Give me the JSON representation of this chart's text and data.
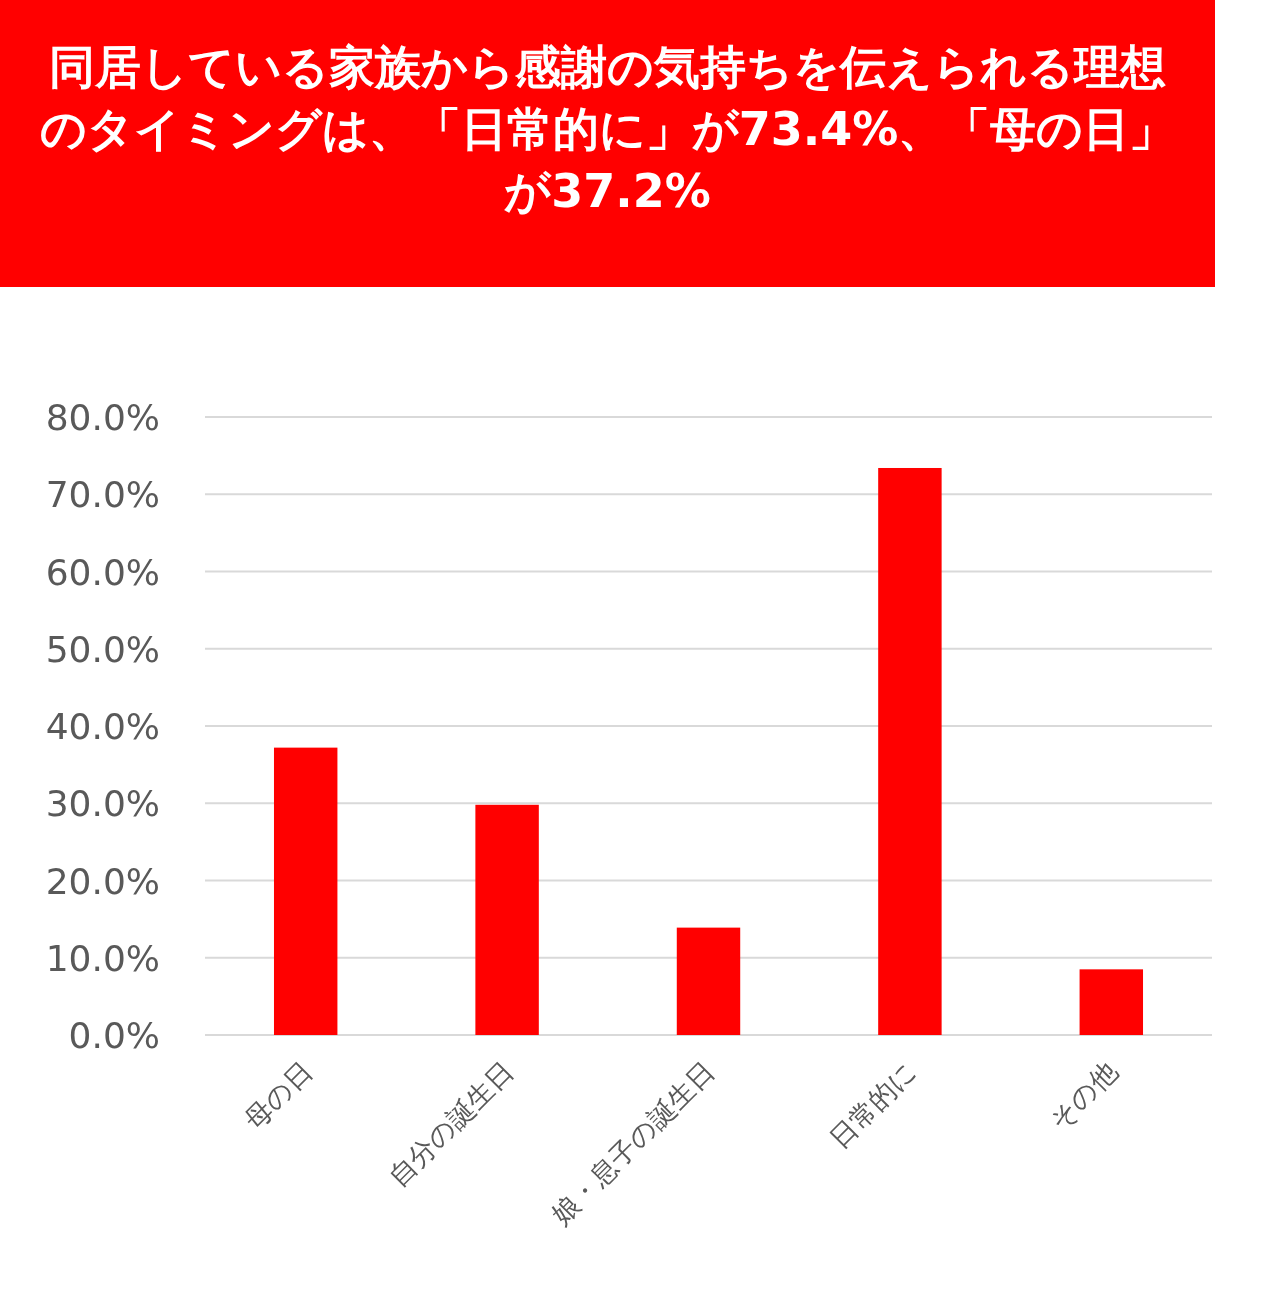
{
  "chart_data": {
    "type": "bar",
    "title": "同居している家族から感謝の気持ちを伝えられる理想のタイミングは、「日常的に」が73.4%、「母の日」が37.2%",
    "categories": [
      "母の日",
      "自分の誕生日",
      "娘・息子の誕生日",
      "日常的に",
      "その他"
    ],
    "values": [
      37.2,
      29.8,
      13.9,
      73.4,
      8.5
    ],
    "color": "#ff0000",
    "ylim": [
      0,
      80
    ],
    "yticks": [
      {
        "value": 0,
        "label": "0.0%"
      },
      {
        "value": 10,
        "label": "10.0%"
      },
      {
        "value": 20,
        "label": "20.0%"
      },
      {
        "value": 30,
        "label": "30.0%"
      },
      {
        "value": 40,
        "label": "40.0%"
      },
      {
        "value": 50,
        "label": "50.0%"
      },
      {
        "value": 60,
        "label": "60.0%"
      },
      {
        "value": 70,
        "label": "70.0%"
      },
      {
        "value": 80,
        "label": "80.0%"
      }
    ],
    "grid": "y"
  }
}
